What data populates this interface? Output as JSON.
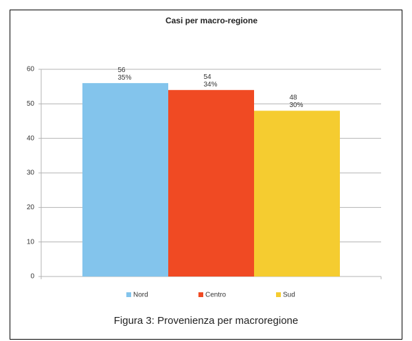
{
  "chart_data": {
    "type": "bar",
    "title": "Casi per macro-regione",
    "categories": [
      null
    ],
    "series": [
      {
        "name": "Nord",
        "color": "#83c4ec",
        "values": [
          56
        ],
        "shares": [
          35
        ],
        "share_labels": [
          "35%"
        ]
      },
      {
        "name": "Centro",
        "color": "#f04a23",
        "values": [
          54
        ],
        "shares": [
          34
        ],
        "share_labels": [
          "34%"
        ]
      },
      {
        "name": "Sud",
        "color": "#f5cc30",
        "values": [
          48
        ],
        "shares": [
          30
        ],
        "share_labels": [
          "30%"
        ]
      }
    ],
    "ylim": [
      0,
      60
    ],
    "yticks": [
      0,
      10,
      20,
      30,
      40,
      50,
      60
    ],
    "grid": true,
    "legend": "bottom"
  },
  "caption": "Figura 3: Provenienza per macroregione"
}
